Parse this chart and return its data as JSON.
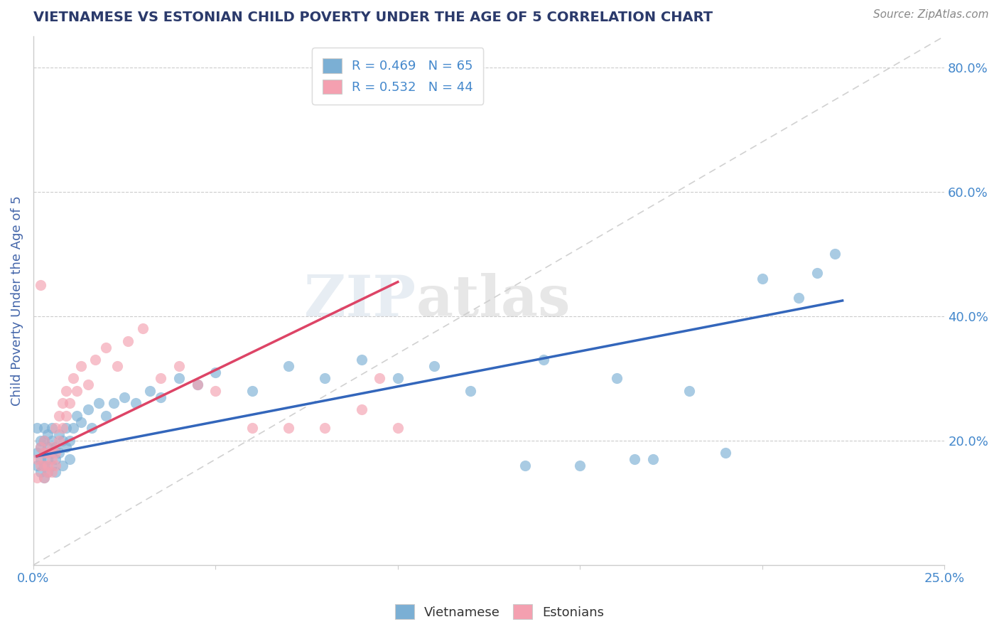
{
  "title": "VIETNAMESE VS ESTONIAN CHILD POVERTY UNDER THE AGE OF 5 CORRELATION CHART",
  "source": "Source: ZipAtlas.com",
  "ylabel": "Child Poverty Under the Age of 5",
  "xlim": [
    0.0,
    0.25
  ],
  "ylim": [
    0.0,
    0.85
  ],
  "xtick_positions": [
    0.0,
    0.05,
    0.1,
    0.15,
    0.2,
    0.25
  ],
  "yticks_right": [
    0.2,
    0.4,
    0.6,
    0.8
  ],
  "ytick_right_labels": [
    "20.0%",
    "40.0%",
    "60.0%",
    "80.0%"
  ],
  "legend_blue_label": "R = 0.469   N = 65",
  "legend_pink_label": "R = 0.532   N = 44",
  "legend_bottom_blue": "Vietnamese",
  "legend_bottom_pink": "Estonians",
  "blue_color": "#7BAFD4",
  "pink_color": "#F4A0B0",
  "trend_blue": "#3366BB",
  "trend_pink": "#DD4466",
  "watermark_zip": "ZIP",
  "watermark_atlas": "atlas",
  "title_color": "#2B3A6B",
  "axis_label_color": "#4466AA",
  "tick_color": "#4488CC",
  "vietnamese_x": [
    0.001,
    0.001,
    0.001,
    0.002,
    0.002,
    0.002,
    0.002,
    0.003,
    0.003,
    0.003,
    0.003,
    0.003,
    0.004,
    0.004,
    0.004,
    0.004,
    0.005,
    0.005,
    0.005,
    0.005,
    0.006,
    0.006,
    0.006,
    0.007,
    0.007,
    0.008,
    0.008,
    0.009,
    0.009,
    0.01,
    0.01,
    0.011,
    0.012,
    0.013,
    0.015,
    0.016,
    0.018,
    0.02,
    0.022,
    0.025,
    0.028,
    0.032,
    0.035,
    0.04,
    0.045,
    0.05,
    0.06,
    0.07,
    0.08,
    0.09,
    0.1,
    0.11,
    0.12,
    0.14,
    0.16,
    0.18,
    0.2,
    0.21,
    0.215,
    0.22,
    0.15,
    0.17,
    0.19,
    0.135,
    0.165
  ],
  "vietnamese_y": [
    0.18,
    0.22,
    0.16,
    0.2,
    0.17,
    0.15,
    0.19,
    0.16,
    0.22,
    0.18,
    0.14,
    0.2,
    0.17,
    0.19,
    0.15,
    0.21,
    0.18,
    0.16,
    0.2,
    0.22,
    0.17,
    0.19,
    0.15,
    0.21,
    0.18,
    0.2,
    0.16,
    0.22,
    0.19,
    0.17,
    0.2,
    0.22,
    0.24,
    0.23,
    0.25,
    0.22,
    0.26,
    0.24,
    0.26,
    0.27,
    0.26,
    0.28,
    0.27,
    0.3,
    0.29,
    0.31,
    0.28,
    0.32,
    0.3,
    0.33,
    0.3,
    0.32,
    0.28,
    0.33,
    0.3,
    0.28,
    0.46,
    0.43,
    0.47,
    0.5,
    0.16,
    0.17,
    0.18,
    0.16,
    0.17
  ],
  "estonian_x": [
    0.001,
    0.001,
    0.002,
    0.002,
    0.002,
    0.003,
    0.003,
    0.003,
    0.003,
    0.004,
    0.004,
    0.004,
    0.005,
    0.005,
    0.005,
    0.006,
    0.006,
    0.006,
    0.007,
    0.007,
    0.008,
    0.008,
    0.009,
    0.009,
    0.01,
    0.011,
    0.012,
    0.013,
    0.015,
    0.017,
    0.02,
    0.023,
    0.026,
    0.03,
    0.035,
    0.04,
    0.045,
    0.05,
    0.06,
    0.07,
    0.08,
    0.09,
    0.095,
    0.1
  ],
  "estonian_y": [
    0.17,
    0.14,
    0.45,
    0.16,
    0.19,
    0.16,
    0.18,
    0.14,
    0.2,
    0.15,
    0.18,
    0.16,
    0.17,
    0.15,
    0.19,
    0.18,
    0.22,
    0.16,
    0.2,
    0.24,
    0.26,
    0.22,
    0.28,
    0.24,
    0.26,
    0.3,
    0.28,
    0.32,
    0.29,
    0.33,
    0.35,
    0.32,
    0.36,
    0.38,
    0.3,
    0.32,
    0.29,
    0.28,
    0.22,
    0.22,
    0.22,
    0.25,
    0.3,
    0.22
  ],
  "diag_line_x": [
    0.0,
    0.25
  ],
  "diag_line_y": [
    0.0,
    0.85
  ],
  "blue_trend_x": [
    0.001,
    0.222
  ],
  "blue_trend_y": [
    0.175,
    0.425
  ],
  "pink_trend_x": [
    0.001,
    0.1
  ],
  "pink_trend_y": [
    0.175,
    0.455
  ]
}
